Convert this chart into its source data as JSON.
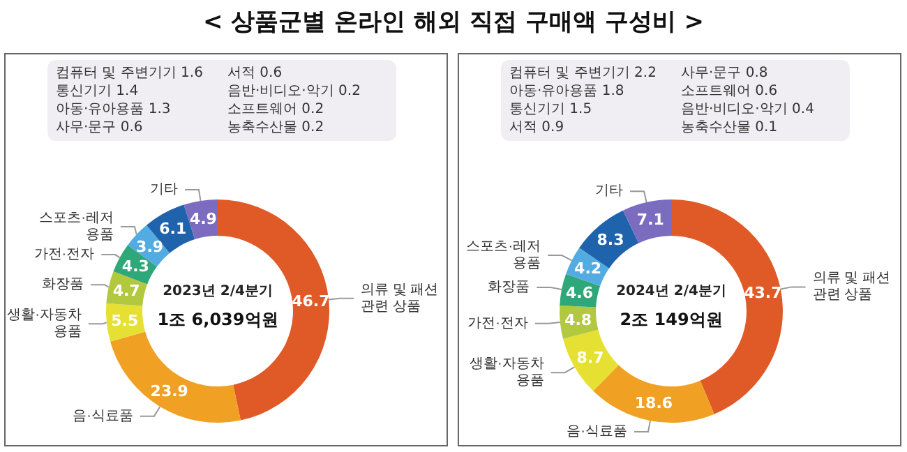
{
  "chart_data": [
    {
      "type": "donut",
      "title": "< 상품군별 온라인 해외 직접 구매액 구성비 >",
      "subtitle": "2023년 2/4분기",
      "categories": [
        "의류 및 패션 관련 상품",
        "음·식료품",
        "생활·자동차용품",
        "화장품",
        "가전·전자",
        "스포츠·레저용품",
        null,
        "기타"
      ],
      "values": [
        46.7,
        23.9,
        5.5,
        4.7,
        4.3,
        3.9,
        6.1,
        4.9
      ],
      "colors": [
        "#e05a28",
        "#f0a022",
        "#e6e032",
        "#b2c83e",
        "#2ea878",
        "#52ace2",
        "#1f63ad",
        "#7c6cc0"
      ],
      "data_labels": true,
      "legend": false,
      "annotations": [
        "1조 6,039억원",
        "컴퓨터 및 주변기기 1.6",
        "통신기기 1.4",
        "아동·유아용품 1.3",
        "사무·문구 0.6",
        "서적 0.6",
        "음반·비디오·악기 0.2",
        "소프트웨어 0.2",
        "농축수산물 0.2"
      ]
    },
    {
      "type": "donut",
      "subtitle": "2024년 2/4분기",
      "categories": [
        "의류 및 패션 관련 상품",
        "음·식료품",
        "생활·자동차용품",
        "가전·전자",
        "화장품",
        "스포츠·레저용품",
        null,
        "기타"
      ],
      "values": [
        43.7,
        18.6,
        8.7,
        4.8,
        4.6,
        4.2,
        8.3,
        7.1
      ],
      "colors": [
        "#e05a28",
        "#f0a022",
        "#e6e032",
        "#b2c83e",
        "#2ea878",
        "#52ace2",
        "#1f63ad",
        "#7c6cc0"
      ],
      "data_labels": true,
      "legend": false,
      "annotations": [
        "2조 149억원",
        "컴퓨터 및 주변기기 2.2",
        "아동·유아용품 1.8",
        "통신기기 1.5",
        "서적 0.9",
        "사무·문구 0.8",
        "소프트웨어 0.6",
        "음반·비디오·악기 0.4",
        "농축수산물 0.1"
      ]
    }
  ]
}
